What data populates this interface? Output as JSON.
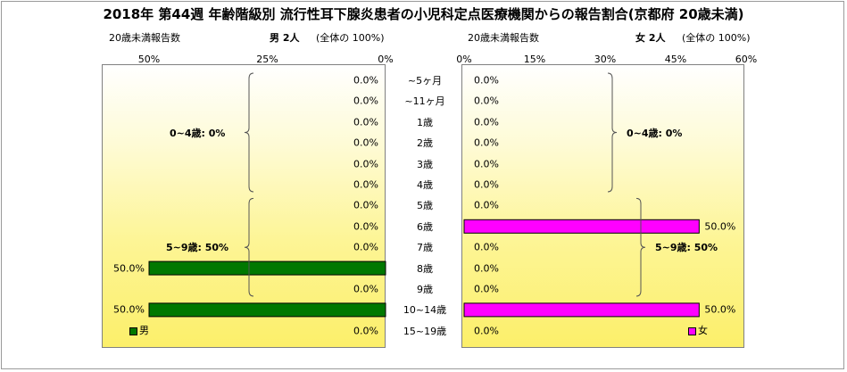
{
  "title": "2018年 第44週 年齢階級別 流行性耳下腺炎患者の小児科定点医療機関からの報告割合(京都府 20歳未満)",
  "male_header": {
    "left": "20歳未満報告数",
    "label": "男 2人",
    "total": "(全体の 100%)"
  },
  "female_header": {
    "left": "20歳未満報告数",
    "label": "女 2人",
    "total": "(全体の 100%)"
  },
  "colors": {
    "male": "#007800",
    "female": "#ff00ff"
  },
  "chart_data": [
    {
      "type": "bar",
      "orientation": "horizontal-left",
      "name": "男",
      "xlim": [
        0,
        50
      ],
      "x_ticks": [
        "50%",
        "25%",
        "0%"
      ],
      "categories": [
        "~5ヶ月",
        "~11ヶ月",
        "1歳",
        "2歳",
        "3歳",
        "4歳",
        "5歳",
        "6歳",
        "7歳",
        "8歳",
        "9歳",
        "10~14歳",
        "15~19歳"
      ],
      "values": [
        0,
        0,
        0,
        0,
        0,
        0,
        0,
        0,
        0,
        50,
        0,
        50,
        0
      ],
      "value_labels": [
        "0.0%",
        "0.0%",
        "0.0%",
        "0.0%",
        "0.0%",
        "0.0%",
        "0.0%",
        "0.0%",
        "0.0%",
        "50.0%",
        "0.0%",
        "50.0%",
        "0.0%"
      ],
      "groups": [
        {
          "label": "0~4歳: 0%",
          "from": 0,
          "to": 5
        },
        {
          "label": "5~9歳: 50%",
          "from": 6,
          "to": 10
        }
      ],
      "legend": "男"
    },
    {
      "type": "bar",
      "orientation": "horizontal-right",
      "name": "女",
      "xlim": [
        0,
        60
      ],
      "x_ticks": [
        "0%",
        "15%",
        "30%",
        "45%",
        "60%"
      ],
      "categories": [
        "~5ヶ月",
        "~11ヶ月",
        "1歳",
        "2歳",
        "3歳",
        "4歳",
        "5歳",
        "6歳",
        "7歳",
        "8歳",
        "9歳",
        "10~14歳",
        "15~19歳"
      ],
      "values": [
        0,
        0,
        0,
        0,
        0,
        0,
        0,
        50,
        0,
        0,
        0,
        50,
        0
      ],
      "value_labels": [
        "0.0%",
        "0.0%",
        "0.0%",
        "0.0%",
        "0.0%",
        "0.0%",
        "0.0%",
        "50.0%",
        "0.0%",
        "0.0%",
        "0.0%",
        "50.0%",
        "0.0%"
      ],
      "groups": [
        {
          "label": "0~4歳: 0%",
          "from": 0,
          "to": 5
        },
        {
          "label": "5~9歳: 50%",
          "from": 6,
          "to": 10
        }
      ],
      "legend": "女"
    }
  ]
}
